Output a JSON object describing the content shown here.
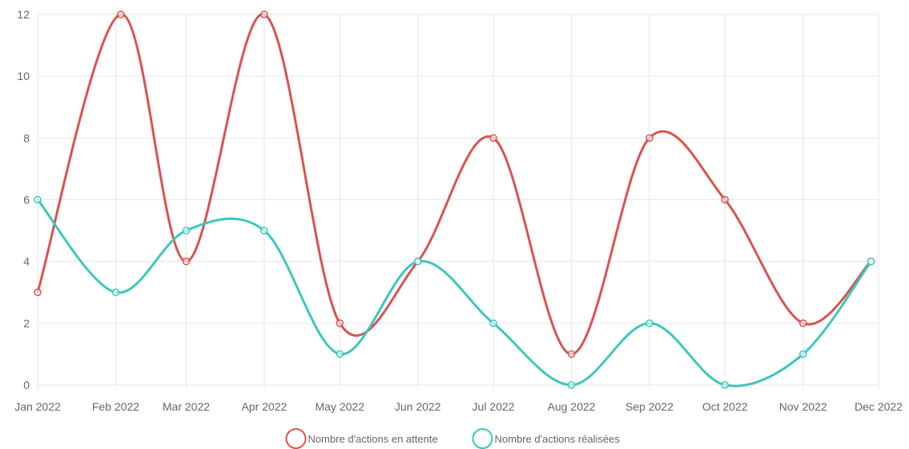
{
  "colors": {
    "pending": "#d9534f",
    "done": "#3cc7bd",
    "grid": "#e6e6e6",
    "axis_text": "#666666"
  },
  "chart_data": {
    "type": "line",
    "x": [
      "2022-01-01",
      "2022-02-01",
      "2022-03-01",
      "2022-04-01",
      "2022-05-01",
      "2022-06-01",
      "2022-07-01",
      "2022-08-01",
      "2022-09-01",
      "2022-10-01",
      "2022-11-01",
      "2022-12-01"
    ],
    "x_tick_labels": [
      "Jan 2022",
      "Feb 2022",
      "Mar 2022",
      "Apr 2022",
      "May 2022",
      "Jun 2022",
      "Jul 2022",
      "Aug 2022",
      "Sep 2022",
      "Oct 2022",
      "Nov 2022",
      "Dec 2022"
    ],
    "x_range": [
      "2022-01-01",
      "2022-12-01"
    ],
    "series": [
      {
        "name": "Nombre d'actions en attente",
        "color_key": "pending",
        "points": [
          {
            "x": "2022-01-01",
            "y": 3
          },
          {
            "x": "2022-02-03",
            "y": 12
          },
          {
            "x": "2022-03-01",
            "y": 4
          },
          {
            "x": "2022-04-01",
            "y": 12
          },
          {
            "x": "2022-05-01",
            "y": 2
          },
          {
            "x": "2022-06-01",
            "y": 4
          },
          {
            "x": "2022-07-01",
            "y": 8
          },
          {
            "x": "2022-08-01",
            "y": 1
          },
          {
            "x": "2022-09-01",
            "y": 8
          },
          {
            "x": "2022-10-01",
            "y": 6
          },
          {
            "x": "2022-11-01",
            "y": 2
          },
          {
            "x": "2022-11-28",
            "y": 4
          }
        ]
      },
      {
        "name": "Nombre d'actions réalisées",
        "color_key": "done",
        "points": [
          {
            "x": "2022-01-01",
            "y": 6
          },
          {
            "x": "2022-02-01",
            "y": 3
          },
          {
            "x": "2022-03-01",
            "y": 5
          },
          {
            "x": "2022-04-01",
            "y": 5
          },
          {
            "x": "2022-05-01",
            "y": 1
          },
          {
            "x": "2022-06-01",
            "y": 4
          },
          {
            "x": "2022-07-01",
            "y": 2
          },
          {
            "x": "2022-08-01",
            "y": 0
          },
          {
            "x": "2022-09-01",
            "y": 2
          },
          {
            "x": "2022-10-01",
            "y": 0
          },
          {
            "x": "2022-11-01",
            "y": 1
          },
          {
            "x": "2022-11-28",
            "y": 4
          }
        ]
      }
    ],
    "ylim": [
      0,
      12
    ],
    "y_ticks": [
      0,
      2,
      4,
      6,
      8,
      10,
      12
    ],
    "y_tick_labels": [
      "0",
      "2",
      "4",
      "6",
      "8",
      "10",
      "12"
    ],
    "grid": true,
    "legend_position": "bottom-center",
    "title": "",
    "xlabel": "",
    "ylabel": ""
  }
}
